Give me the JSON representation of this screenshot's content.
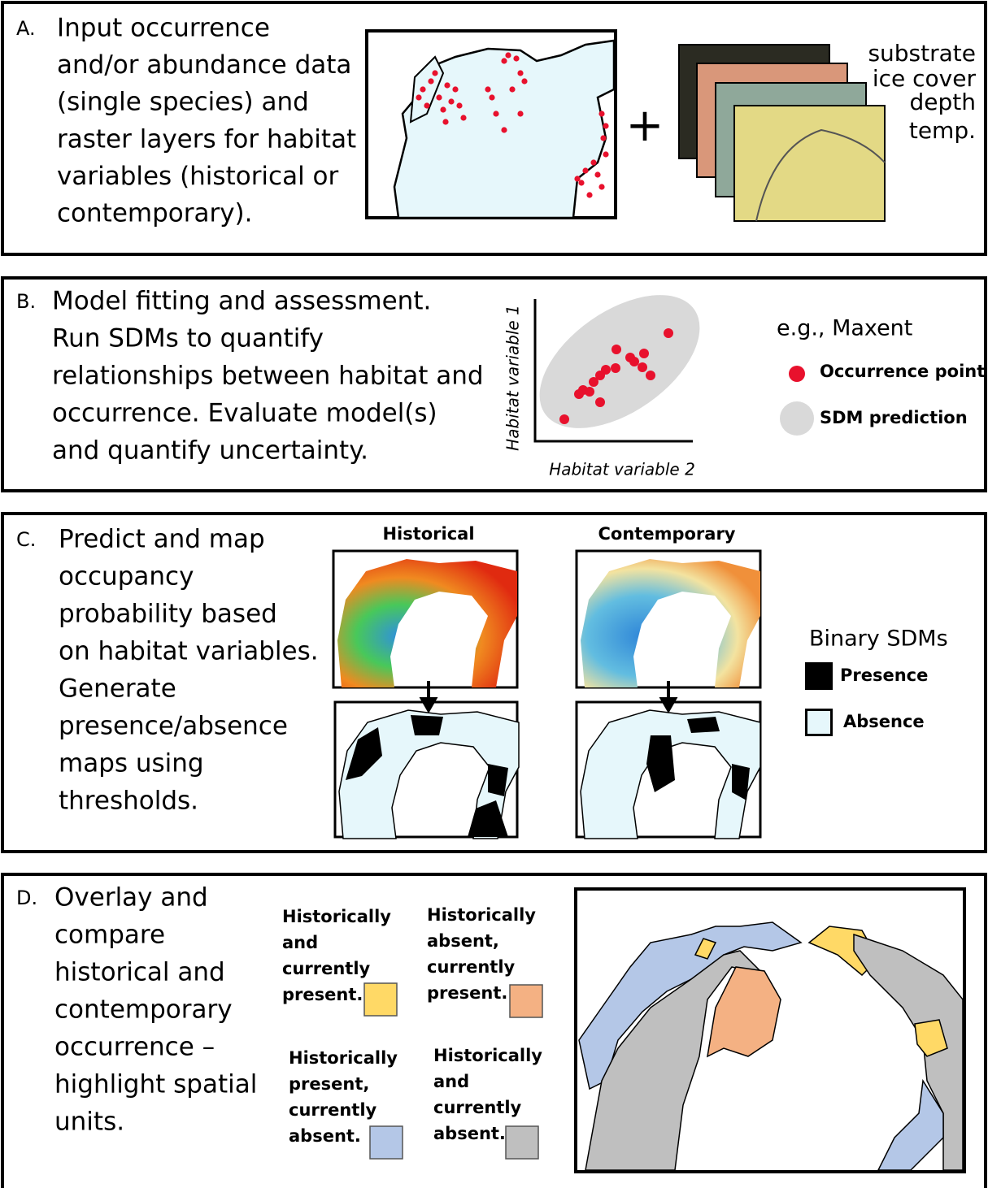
{
  "panel_a": {
    "label": "A.",
    "text_lines": [
      "Input occurrence",
      "and/or abundance data",
      "(single species) and",
      "raster layers for habitat",
      "variables (historical or",
      "contemporary)."
    ],
    "layer_labels": [
      "substrate",
      "ice cover",
      "depth",
      "temp."
    ]
  },
  "panel_b": {
    "label": "B.",
    "text_lines": [
      "Model fitting and assessment.",
      "Run SDMs to quantify",
      "relationships between habitat and",
      "occurrence. Evaluate model(s)",
      "and quantify uncertainty."
    ],
    "y_axis_label": "Habitat variable 1",
    "x_axis_label": "Habitat variable 2",
    "legend_title": "e.g., Maxent",
    "legend": [
      "Occurrence point",
      "SDM prediction"
    ]
  },
  "panel_c": {
    "label": "C.",
    "text_lines": [
      "Predict and map",
      "occupancy",
      "probability based",
      "on habitat variables.",
      "Generate",
      "presence/absence",
      "maps using",
      "thresholds."
    ],
    "map_titles": [
      "Historical",
      "Contemporary"
    ],
    "legend_title": "Binary SDMs",
    "legend": [
      "Presence",
      "Absence"
    ]
  },
  "panel_d": {
    "label": "D.",
    "text_lines": [
      "Overlay and",
      "compare",
      "historical and",
      "contemporary",
      "occurrence –",
      "highlight spatial",
      "units."
    ],
    "legend": [
      [
        "Historically",
        "and",
        "currently",
        "present."
      ],
      [
        "Historically",
        "absent,",
        "currently",
        "present."
      ],
      [
        "Historically",
        "present,",
        "currently",
        "absent."
      ],
      [
        "Historically",
        "and",
        "currently",
        "absent."
      ]
    ]
  }
}
